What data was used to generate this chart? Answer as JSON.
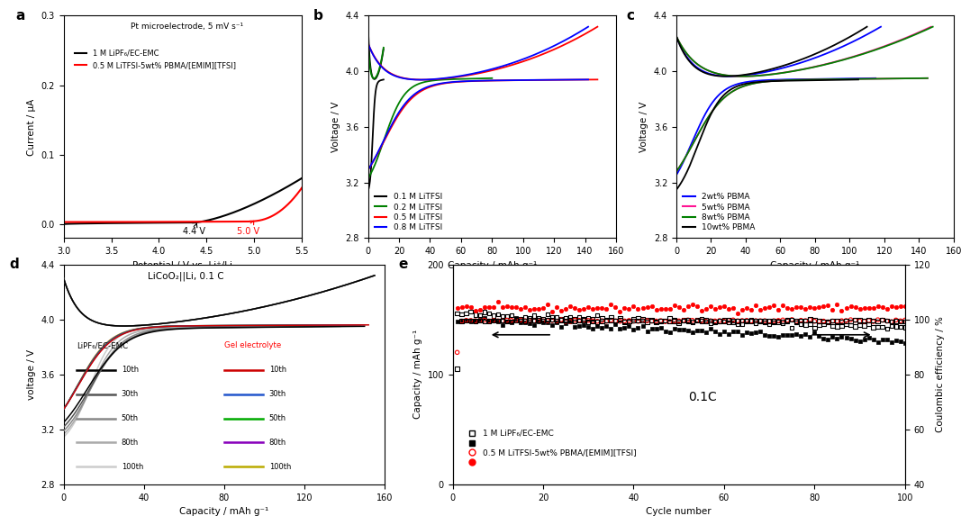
{
  "fig_width": 10.8,
  "fig_height": 5.88,
  "background": "white",
  "panel_a": {
    "label": "a",
    "xlim": [
      3.0,
      5.5
    ],
    "ylim": [
      -0.02,
      0.3
    ],
    "xticks": [
      3.0,
      3.5,
      4.0,
      4.5,
      5.0,
      5.5
    ],
    "yticks": [
      0.0,
      0.1,
      0.2,
      0.3
    ],
    "xlabel": "Potential / V vs. Li⁺/Li",
    "ylabel": "Current / μA",
    "annotation_text": "Pt microelectrode, 5 mV s⁻¹",
    "line1_label": "1 M LiPF₆/EC-EMC",
    "line2_label": "0.5 M LiTFSI-5wt% PBMA/[EMIM][TFSI]",
    "line1_color": "black",
    "line2_color": "red"
  },
  "panel_b": {
    "label": "b",
    "xlim": [
      0,
      160
    ],
    "ylim": [
      2.8,
      4.4
    ],
    "xticks": [
      0,
      20,
      40,
      60,
      80,
      100,
      120,
      140,
      160
    ],
    "yticks": [
      2.8,
      3.2,
      3.6,
      4.0,
      4.4
    ],
    "xlabel": "Capacity / mAh g⁻¹",
    "ylabel": "Voltage / V",
    "colors": [
      "black",
      "green",
      "red",
      "blue"
    ],
    "labels": [
      "0.1 M LiTFSI",
      "0.2 M LiTFSI",
      "0.5 M LiTFSI",
      "0.8 M LiTFSI"
    ]
  },
  "panel_c": {
    "label": "c",
    "xlim": [
      0,
      160
    ],
    "ylim": [
      2.8,
      4.4
    ],
    "xticks": [
      0,
      20,
      40,
      60,
      80,
      100,
      120,
      140,
      160
    ],
    "yticks": [
      2.8,
      3.2,
      3.6,
      4.0,
      4.4
    ],
    "xlabel": "Capacity / mAh g⁻¹",
    "ylabel": "Voltage / V",
    "colors": [
      "blue",
      "deeppink",
      "green",
      "black"
    ],
    "labels": [
      "2wt% PBMA",
      "5wt% PBMA",
      "8wt% PBMA",
      "10wt% PBMA"
    ]
  },
  "panel_d": {
    "label": "d",
    "xlim": [
      0,
      160
    ],
    "ylim": [
      2.8,
      4.4
    ],
    "xticks": [
      0,
      40,
      80,
      120,
      160
    ],
    "yticks": [
      2.8,
      3.2,
      3.6,
      4.0,
      4.4
    ],
    "xlabel": "Capacity / mAh g⁻¹",
    "ylabel": "voltage / V",
    "title": "LiCoO₂||Li, 0.1 C",
    "lipf6_colors": [
      "#000000",
      "#555555",
      "#888888",
      "#aaaaaa",
      "#cccccc"
    ],
    "gel_colors": [
      "#cc0000",
      "#2255cc",
      "#00aa00",
      "#8800bb",
      "#bbaa00"
    ],
    "cycle_labels": [
      "10th",
      "30th",
      "50th",
      "80th",
      "100th"
    ]
  },
  "panel_e": {
    "label": "e",
    "xlim": [
      0,
      100
    ],
    "ylim_left": [
      0,
      200
    ],
    "ylim_right": [
      40,
      120
    ],
    "xticks": [
      0,
      20,
      40,
      60,
      80,
      100
    ],
    "yticks_left": [
      0,
      100,
      200
    ],
    "yticks_right": [
      40,
      60,
      80,
      100,
      120
    ],
    "xlabel": "Cycle number",
    "ylabel_left": "Capacity / mAh g⁻¹",
    "ylabel_right": "Coulombic efficiency / %",
    "annotation": "0.1C",
    "label1": "1 M LiPF₆/EC-EMC",
    "label2": "0.5 M LiTFSI-5wt% PBMA/[EMIM][TFSI]"
  }
}
